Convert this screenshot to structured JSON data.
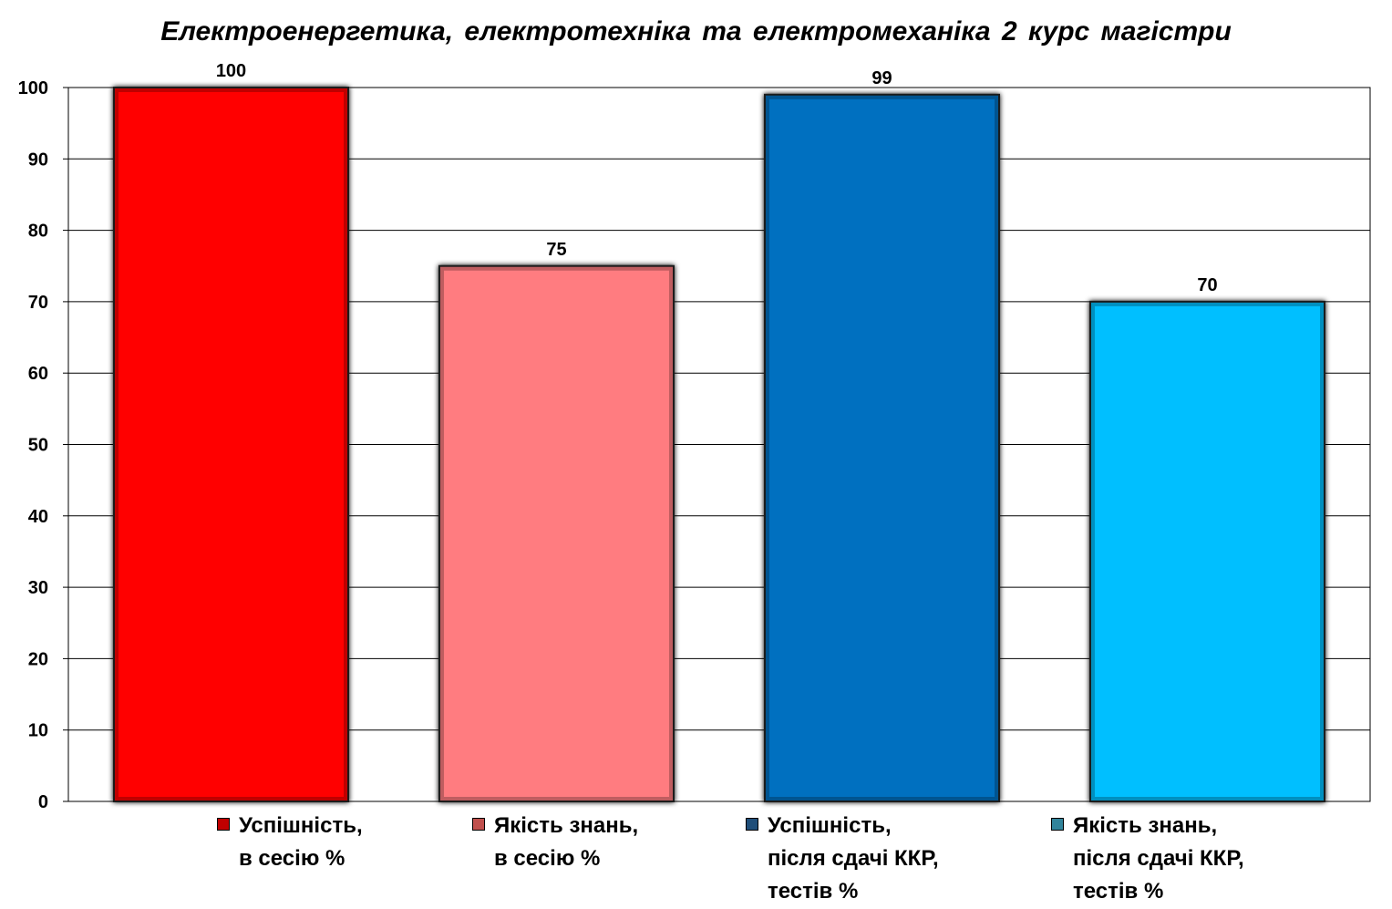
{
  "chart_data": {
    "type": "bar",
    "title": "Електроенергетика,  електротехніка  та електромеханіка  2 курс магістри",
    "categories": [
      "Успішність,\nв сесію %",
      "Якість знань,\nв сесію %",
      "Успішність,\nпісля сдачі ККР,\nтестів %",
      "Якість знань,\nпісля сдачі ККР,\nтестів %"
    ],
    "values": [
      100,
      75,
      99,
      70
    ],
    "colors": [
      "#ff0000",
      "#ff7c80",
      "#0070c0",
      "#00bfff"
    ],
    "legend_colors": [
      "#c00000",
      "#c0504d",
      "#1f4e79",
      "#31849b"
    ],
    "ylim": [
      0,
      100
    ],
    "yticks": [
      0,
      10,
      20,
      30,
      40,
      50,
      60,
      70,
      80,
      90,
      100
    ],
    "xlabel": "",
    "ylabel": "",
    "grid": true,
    "legend_placement": "bottom"
  }
}
